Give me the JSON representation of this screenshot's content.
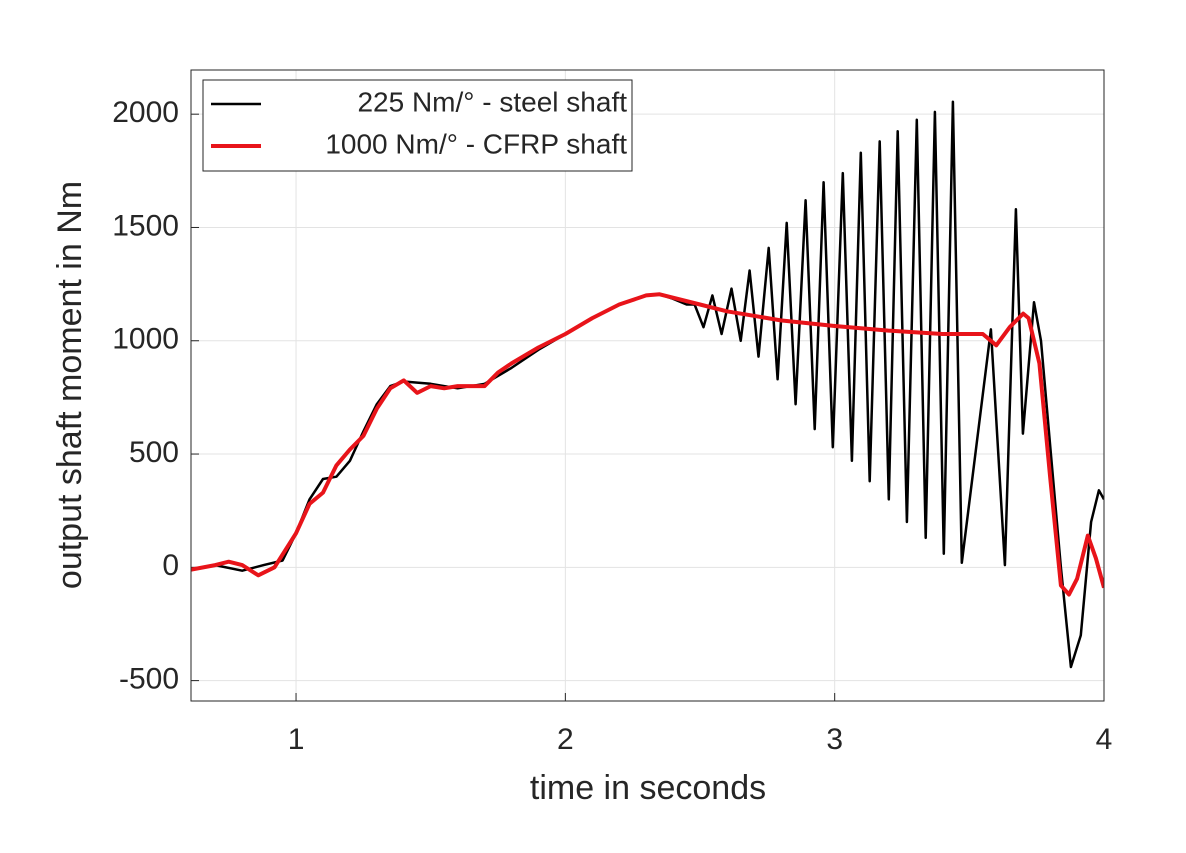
{
  "chart_data": {
    "type": "line",
    "xlabel": "time in seconds",
    "ylabel": "output shaft moment in Nm",
    "xlim": [
      0.61,
      4
    ],
    "ylim": [
      -590,
      2195
    ],
    "xticks": [
      1,
      2,
      3,
      4
    ],
    "yticks": [
      -500,
      0,
      500,
      1000,
      1500,
      2000
    ],
    "grid": true,
    "legend": "upper left",
    "series": [
      {
        "name": "225 Nm/° - steel shaft",
        "color": "#000000",
        "width": 2.5,
        "x": [
          0.61,
          0.7,
          0.8,
          0.88,
          0.95,
          1.0,
          1.05,
          1.1,
          1.15,
          1.2,
          1.25,
          1.3,
          1.35,
          1.4,
          1.5,
          1.6,
          1.7,
          1.8,
          1.9,
          2.0,
          2.1,
          2.2,
          2.3,
          2.35,
          2.4,
          2.45,
          2.48,
          2.513,
          2.546,
          2.58,
          2.617,
          2.651,
          2.684,
          2.717,
          2.755,
          2.788,
          2.822,
          2.855,
          2.892,
          2.926,
          2.959,
          2.993,
          3.03,
          3.064,
          3.097,
          3.13,
          3.167,
          3.201,
          3.234,
          3.268,
          3.305,
          3.338,
          3.372,
          3.405,
          3.439,
          3.472,
          3.58,
          3.632,
          3.673,
          3.699,
          3.74,
          3.766,
          3.803,
          3.84,
          3.877,
          3.914,
          3.952,
          3.981,
          4.0
        ],
        "values": [
          -10,
          10,
          -15,
          10,
          30,
          150,
          300,
          390,
          400,
          470,
          600,
          720,
          800,
          820,
          810,
          790,
          810,
          880,
          960,
          1030,
          1100,
          1160,
          1200,
          1205,
          1185,
          1160,
          1160,
          1060,
          1200,
          1030,
          1230,
          1000,
          1310,
          930,
          1410,
          830,
          1520,
          720,
          1620,
          610,
          1700,
          530,
          1740,
          470,
          1830,
          380,
          1880,
          300,
          1925,
          200,
          1975,
          130,
          2010,
          60,
          2055,
          20,
          1050,
          10,
          1580,
          590,
          1170,
          1000,
          500,
          0,
          -440,
          -300,
          200,
          340,
          300
        ]
      },
      {
        "name": "1000 Nm/° - CFRP shaft",
        "color": "#e8141a",
        "width": 4,
        "x": [
          0.61,
          0.7,
          0.75,
          0.8,
          0.86,
          0.92,
          1.0,
          1.05,
          1.1,
          1.15,
          1.2,
          1.25,
          1.3,
          1.35,
          1.4,
          1.45,
          1.5,
          1.55,
          1.6,
          1.7,
          1.75,
          1.8,
          1.9,
          2.0,
          2.1,
          2.2,
          2.3,
          2.35,
          2.5,
          2.6,
          2.7,
          2.8,
          3.0,
          3.2,
          3.4,
          3.55,
          3.6,
          3.65,
          3.7,
          3.72,
          3.76,
          3.8,
          3.84,
          3.87,
          3.9,
          3.94,
          3.97,
          4.0
        ],
        "values": [
          -10,
          10,
          25,
          10,
          -35,
          0,
          150,
          280,
          330,
          450,
          520,
          580,
          700,
          790,
          825,
          770,
          800,
          790,
          800,
          800,
          860,
          900,
          970,
          1030,
          1100,
          1160,
          1200,
          1205,
          1160,
          1130,
          1110,
          1090,
          1065,
          1045,
          1030,
          1030,
          980,
          1060,
          1120,
          1100,
          900,
          400,
          -80,
          -120,
          -50,
          140,
          40,
          -90
        ]
      }
    ]
  }
}
